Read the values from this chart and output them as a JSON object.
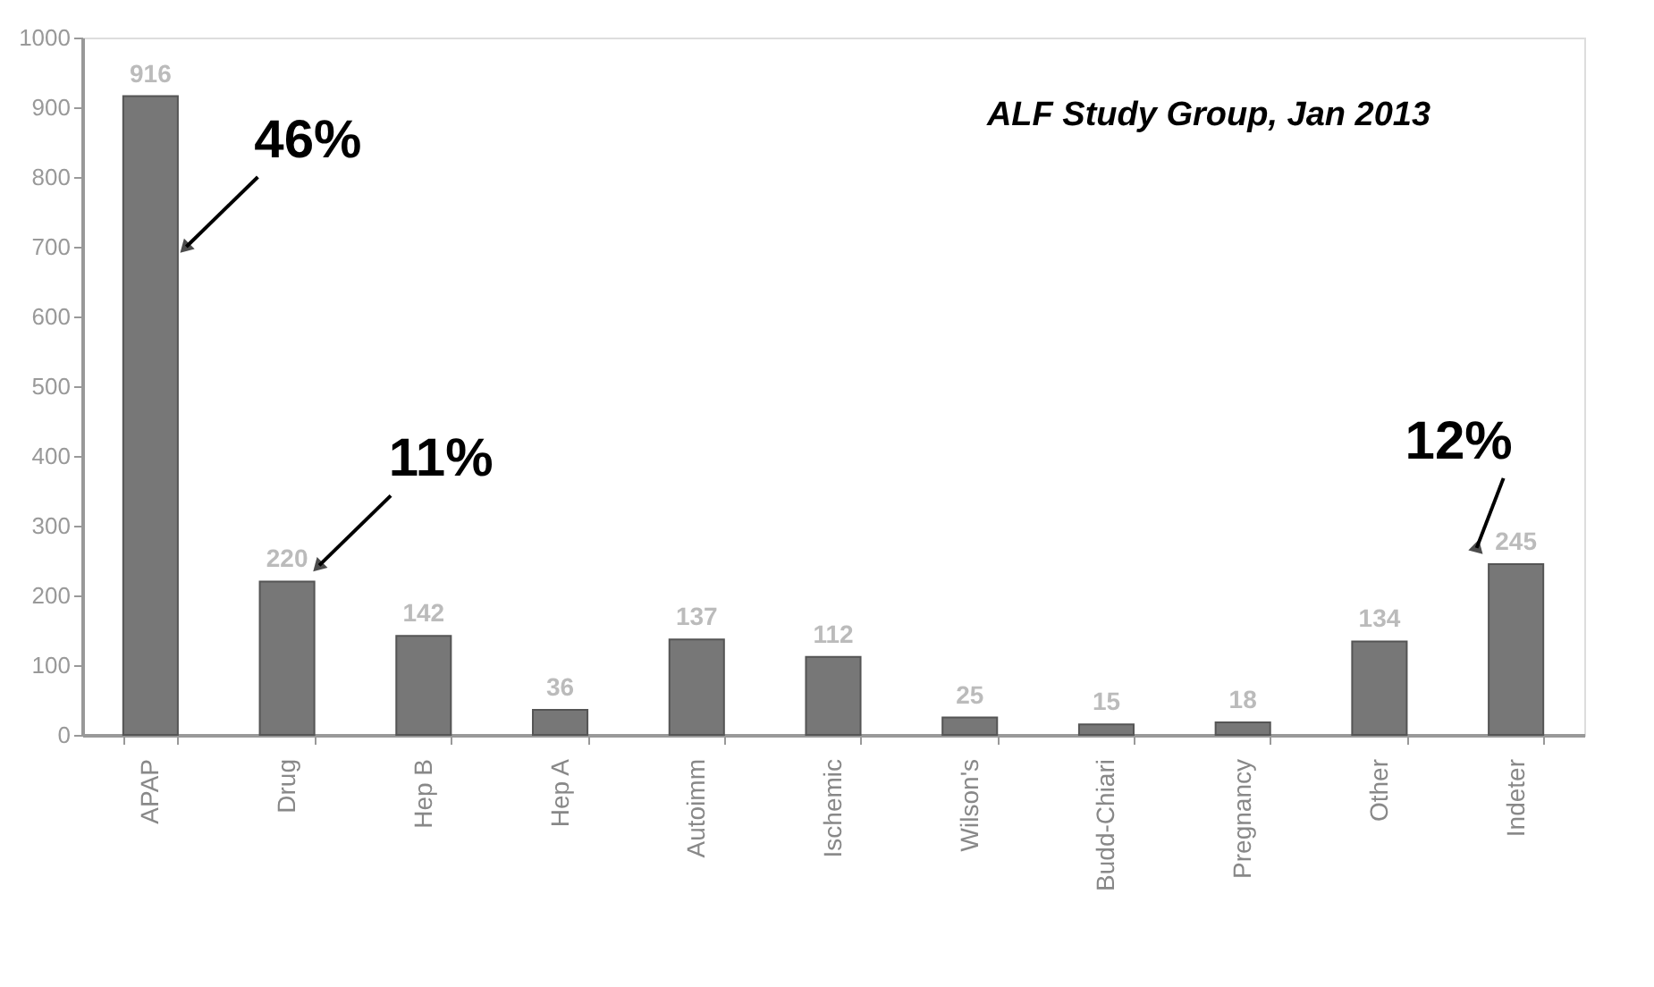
{
  "chart_data": {
    "type": "bar",
    "categories": [
      "APAP",
      "Drug",
      "Hep B",
      "Hep A",
      "Autoimm",
      "Ischemic",
      "Wilson's",
      "Budd-Chiari",
      "Pregnancy",
      "Other",
      "Indeter"
    ],
    "values": [
      916,
      220,
      142,
      36,
      137,
      112,
      25,
      15,
      18,
      134,
      245
    ],
    "color": "#777777",
    "ylim": [
      0,
      1000
    ],
    "yticks": [
      0,
      100,
      200,
      300,
      400,
      500,
      600,
      700,
      800,
      900,
      {
        "value": 1000,
        "label": "1000"
      }
    ],
    "grid": false,
    "data_labels": true,
    "annotations": [
      {
        "text": "46%",
        "x": "APAP",
        "y": 916
      },
      {
        "text": "11%",
        "x": "Drug",
        "y": 220
      },
      {
        "text": "12%",
        "x": "Indeter",
        "y": 245
      },
      "ALF Study Group, Jan 2013"
    ]
  }
}
